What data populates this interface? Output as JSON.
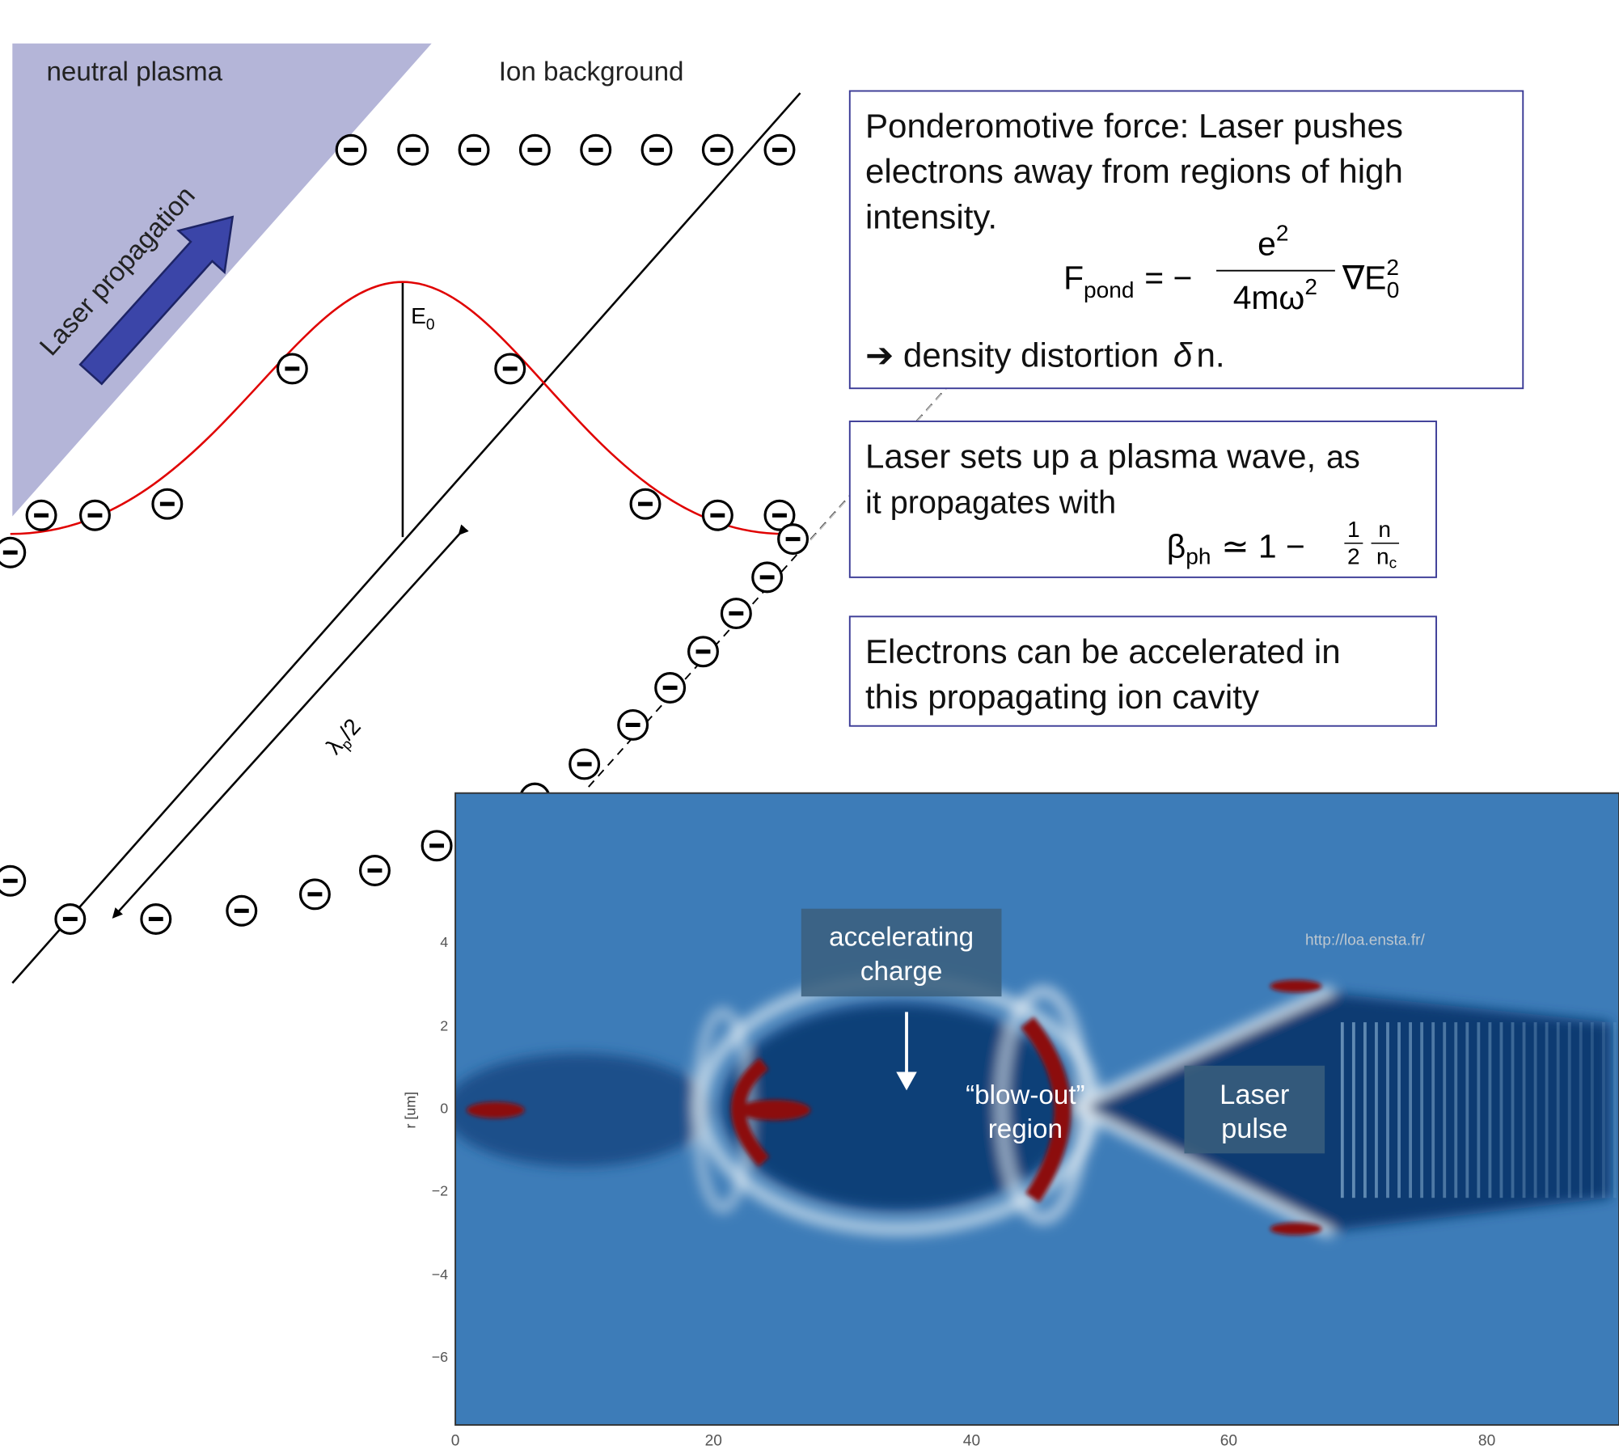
{
  "labels": {
    "neutral_plasma": "neutral plasma",
    "ion_background": "Ion background",
    "laser_propagation": "Laser propagation",
    "field": {
      "symbol": "E",
      "sub": "0"
    },
    "wavelength": {
      "symbol": "λ",
      "sub": "p",
      "rest": "/2"
    }
  },
  "ponderomotive": {
    "lines": [
      "Ponderomotive force: Laser pushes",
      "electrons away from regions of high",
      "intensity."
    ],
    "formula": {
      "lhs": "F",
      "lhs_sub": "pond",
      "eq": "= −",
      "num": "e",
      "num_sup": "2",
      "den": "4mω",
      "den_sup": "2",
      "rhs": "∇E",
      "rhs_sub": "0",
      "rhs_sup": "2"
    },
    "conclusion": {
      "text": "➔ density distortion",
      "symbol": "δ",
      "rest": "n."
    }
  },
  "plasma_wave": {
    "lead": "Laser sets up a plasma wave,",
    "lines": [
      "as",
      "it propagates with"
    ],
    "formula": {
      "lhs": "β",
      "lhs_sub": "ph",
      "eq": "≃ 1 −",
      "num1": "1",
      "den1": "2",
      "num2": "n",
      "den2": "n",
      "den2_sub": "c"
    }
  },
  "acceleration": {
    "lines": [
      "Electrons can be accelerated in",
      "this propagating ion cavity"
    ]
  },
  "simulation": {
    "y_label": "r [um]",
    "yticks": [
      "4",
      "2",
      "0",
      "−2",
      "−4",
      "−6"
    ],
    "xticks": [
      "0",
      "20",
      "40",
      "60",
      "80"
    ],
    "source": "http://loa.ensta.fr/",
    "accelerating": [
      "accelerating",
      "charge"
    ],
    "blowout": [
      "“blow-out”",
      "region"
    ],
    "laser": [
      "Laser",
      "pulse"
    ]
  }
}
